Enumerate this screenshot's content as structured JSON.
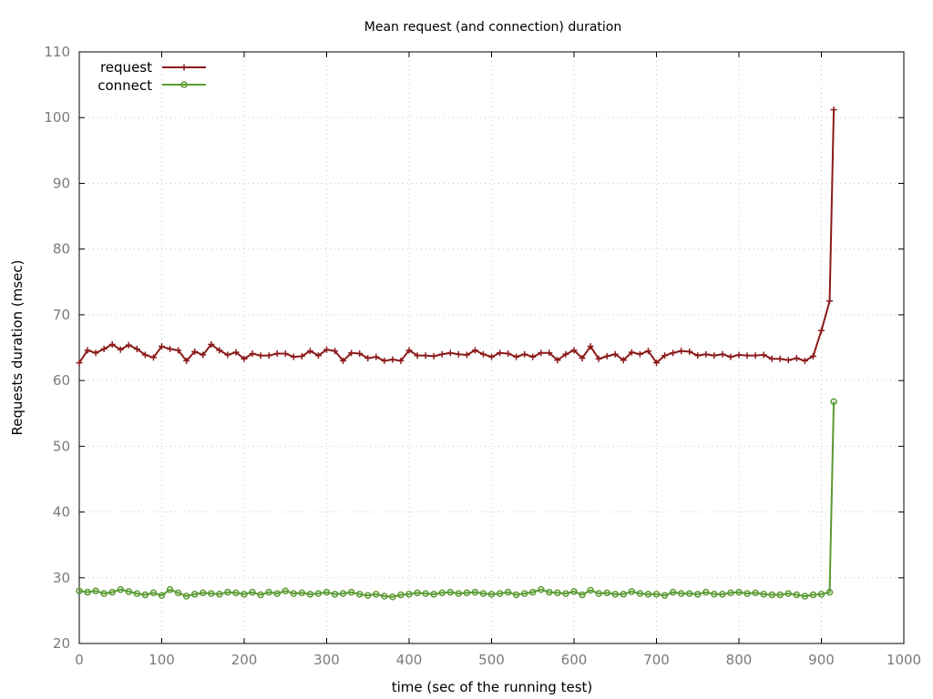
{
  "chart_data": {
    "type": "line",
    "title": "Mean request (and connection) duration",
    "xlabel": "time (sec of the running test)",
    "ylabel": "Requests duration (msec)",
    "xlim": [
      0,
      1000
    ],
    "ylim": [
      20,
      110
    ],
    "x_ticks": [
      0,
      100,
      200,
      300,
      400,
      500,
      600,
      700,
      800,
      900,
      1000
    ],
    "y_ticks": [
      20,
      30,
      40,
      50,
      60,
      70,
      80,
      90,
      100,
      110
    ],
    "grid": true,
    "legend_position": "top-left",
    "series": [
      {
        "name": "request",
        "color": "#8b1a1a",
        "marker": "plus",
        "x": [
          0,
          10,
          20,
          30,
          40,
          50,
          60,
          70,
          80,
          90,
          100,
          110,
          120,
          130,
          140,
          150,
          160,
          170,
          180,
          190,
          200,
          210,
          220,
          230,
          240,
          250,
          260,
          270,
          280,
          290,
          300,
          310,
          320,
          330,
          340,
          350,
          360,
          370,
          380,
          390,
          400,
          410,
          420,
          430,
          440,
          450,
          460,
          470,
          480,
          490,
          500,
          510,
          520,
          530,
          540,
          550,
          560,
          570,
          580,
          590,
          600,
          610,
          620,
          630,
          640,
          650,
          660,
          670,
          680,
          690,
          700,
          710,
          720,
          730,
          740,
          750,
          760,
          770,
          780,
          790,
          800,
          810,
          820,
          830,
          840,
          850,
          860,
          870,
          880,
          890,
          900,
          910,
          915
        ],
        "y": [
          62.7,
          64.6,
          64.2,
          64.8,
          65.5,
          64.7,
          65.4,
          64.8,
          63.9,
          63.5,
          65.2,
          64.8,
          64.6,
          63.0,
          64.4,
          63.9,
          65.5,
          64.6,
          63.9,
          64.3,
          63.3,
          64.1,
          63.8,
          63.8,
          64.1,
          64.1,
          63.6,
          63.7,
          64.5,
          63.8,
          64.7,
          64.5,
          63.0,
          64.2,
          64.1,
          63.4,
          63.6,
          63.0,
          63.2,
          63.0,
          64.6,
          63.8,
          63.8,
          63.7,
          64.0,
          64.2,
          64.0,
          63.9,
          64.6,
          64.0,
          63.6,
          64.2,
          64.1,
          63.6,
          64.0,
          63.6,
          64.2,
          64.2,
          63.1,
          64.0,
          64.6,
          63.4,
          65.2,
          63.3,
          63.7,
          64.0,
          63.1,
          64.3,
          64.0,
          64.5,
          62.7,
          63.8,
          64.2,
          64.5,
          64.4,
          63.8,
          64.0,
          63.8,
          64.0,
          63.6,
          63.9,
          63.8,
          63.8,
          63.9,
          63.3,
          63.3,
          63.1,
          63.4,
          63.0,
          63.7,
          67.6,
          72.1,
          101.2
        ]
      },
      {
        "name": "connect",
        "color": "#5a9a32",
        "marker": "circle",
        "x": [
          0,
          10,
          20,
          30,
          40,
          50,
          60,
          70,
          80,
          90,
          100,
          110,
          120,
          130,
          140,
          150,
          160,
          170,
          180,
          190,
          200,
          210,
          220,
          230,
          240,
          250,
          260,
          270,
          280,
          290,
          300,
          310,
          320,
          330,
          340,
          350,
          360,
          370,
          380,
          390,
          400,
          410,
          420,
          430,
          440,
          450,
          460,
          470,
          480,
          490,
          500,
          510,
          520,
          530,
          540,
          550,
          560,
          570,
          580,
          590,
          600,
          610,
          620,
          630,
          640,
          650,
          660,
          670,
          680,
          690,
          700,
          710,
          720,
          730,
          740,
          750,
          760,
          770,
          780,
          790,
          800,
          810,
          820,
          830,
          840,
          850,
          860,
          870,
          880,
          890,
          900,
          910,
          915
        ],
        "y": [
          28.0,
          27.8,
          28.0,
          27.6,
          27.8,
          28.2,
          27.9,
          27.6,
          27.4,
          27.7,
          27.3,
          28.2,
          27.7,
          27.2,
          27.5,
          27.7,
          27.6,
          27.5,
          27.8,
          27.7,
          27.5,
          27.8,
          27.4,
          27.8,
          27.6,
          28.0,
          27.6,
          27.7,
          27.5,
          27.6,
          27.8,
          27.5,
          27.6,
          27.8,
          27.5,
          27.3,
          27.5,
          27.2,
          27.1,
          27.4,
          27.5,
          27.7,
          27.6,
          27.5,
          27.7,
          27.8,
          27.6,
          27.7,
          27.8,
          27.6,
          27.5,
          27.6,
          27.8,
          27.4,
          27.6,
          27.8,
          28.2,
          27.8,
          27.7,
          27.6,
          27.9,
          27.4,
          28.1,
          27.6,
          27.7,
          27.5,
          27.5,
          27.9,
          27.6,
          27.5,
          27.5,
          27.3,
          27.8,
          27.6,
          27.6,
          27.5,
          27.8,
          27.5,
          27.5,
          27.7,
          27.8,
          27.6,
          27.7,
          27.5,
          27.4,
          27.4,
          27.6,
          27.4,
          27.2,
          27.4,
          27.5,
          27.8,
          56.8
        ]
      }
    ]
  }
}
